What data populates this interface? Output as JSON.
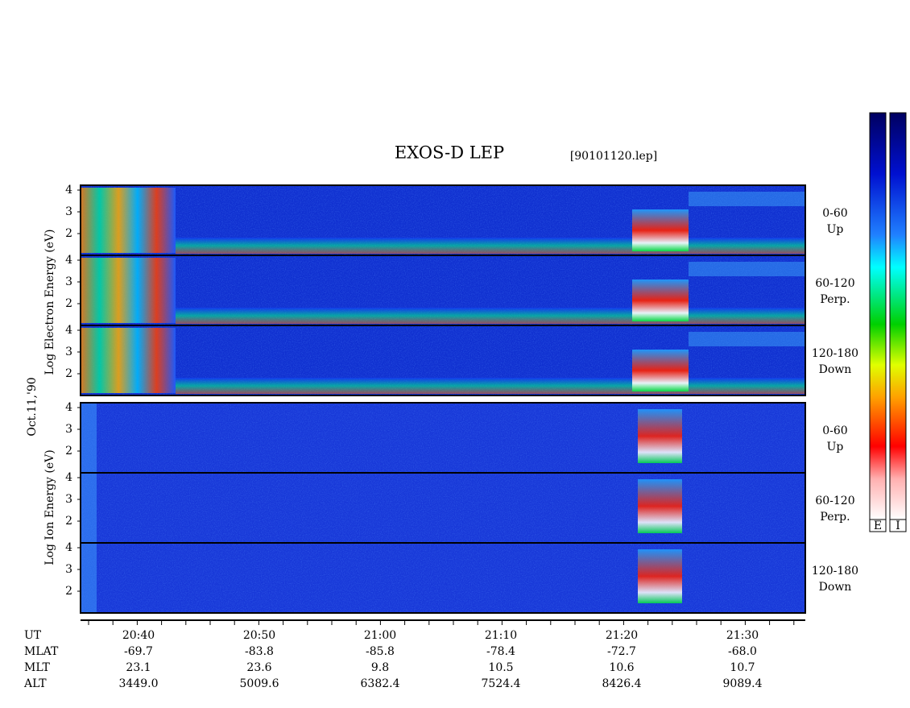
{
  "title": "EXOS-D LEP",
  "file": "[90101120.lep]",
  "date": "Oct.11,'90",
  "electron_axis_label": "Log Electron Energy (eV)",
  "ion_axis_label": "Log Ion Energy (eV)",
  "panels": [
    {
      "species": "electron",
      "ticks": [
        4,
        3,
        2
      ],
      "pitch": "0-60",
      "direction": "Up"
    },
    {
      "species": "electron",
      "ticks": [
        4,
        3,
        2
      ],
      "pitch": "60-120",
      "direction": "Perp."
    },
    {
      "species": "electron",
      "ticks": [
        4,
        3,
        2
      ],
      "pitch": "120-180",
      "direction": "Down"
    },
    {
      "species": "ion",
      "ticks": [
        4,
        3,
        2
      ],
      "pitch": "0-60",
      "direction": "Up"
    },
    {
      "species": "ion",
      "ticks": [
        4,
        3,
        2
      ],
      "pitch": "60-120",
      "direction": "Perp."
    },
    {
      "species": "ion",
      "ticks": [
        4,
        3,
        2
      ],
      "pitch": "120-180",
      "direction": "Down"
    }
  ],
  "ephemeris": [
    {
      "label": "UT",
      "values": [
        "20:40",
        "20:50",
        "21:00",
        "21:10",
        "21:20",
        "21:30"
      ]
    },
    {
      "label": "MLAT",
      "values": [
        "-69.7",
        "-83.8",
        "-85.8",
        "-78.4",
        "-72.7",
        "-68.0"
      ]
    },
    {
      "label": "MLT",
      "values": [
        "23.1",
        "23.6",
        "9.8",
        "10.5",
        "10.6",
        "10.7"
      ]
    },
    {
      "label": "ALT",
      "values": [
        "3449.0",
        "5009.6",
        "6382.4",
        "7524.4",
        "8426.4",
        "9089.4"
      ]
    }
  ],
  "colorbar": {
    "labels": [
      "E",
      "I"
    ]
  }
}
